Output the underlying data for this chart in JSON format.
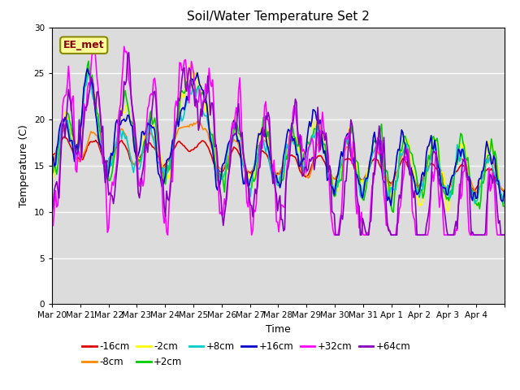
{
  "title": "Soil/Water Temperature Set 2",
  "ylabel": "Temperature (C)",
  "xlabel": "Time",
  "annotation": "EE_met",
  "ylim": [
    0,
    30
  ],
  "yticks": [
    0,
    5,
    10,
    15,
    20,
    25,
    30
  ],
  "plot_bg_color": "#dcdcdc",
  "fig_bg_color": "#ffffff",
  "series": {
    "-16cm": {
      "color": "#dd0000",
      "lw": 1.2
    },
    "-8cm": {
      "color": "#ff8800",
      "lw": 1.2
    },
    "-2cm": {
      "color": "#ffff00",
      "lw": 1.2
    },
    "+2cm": {
      "color": "#00cc00",
      "lw": 1.2
    },
    "+8cm": {
      "color": "#00cccc",
      "lw": 1.2
    },
    "+16cm": {
      "color": "#0000cc",
      "lw": 1.2
    },
    "+32cm": {
      "color": "#ff00ff",
      "lw": 1.2
    },
    "+64cm": {
      "color": "#8800bb",
      "lw": 1.2
    }
  },
  "xtick_labels": [
    "Mar 20",
    "Mar 21",
    "Mar 22",
    "Mar 23",
    "Mar 24",
    "Mar 25",
    "Mar 26",
    "Mar 27",
    "Mar 28",
    "Mar 29",
    "Mar 30",
    "Mar 31",
    "Apr 1",
    "Apr 2",
    "Apr 3",
    "Apr 4"
  ],
  "n_days": 16,
  "pts_per_day": 24
}
